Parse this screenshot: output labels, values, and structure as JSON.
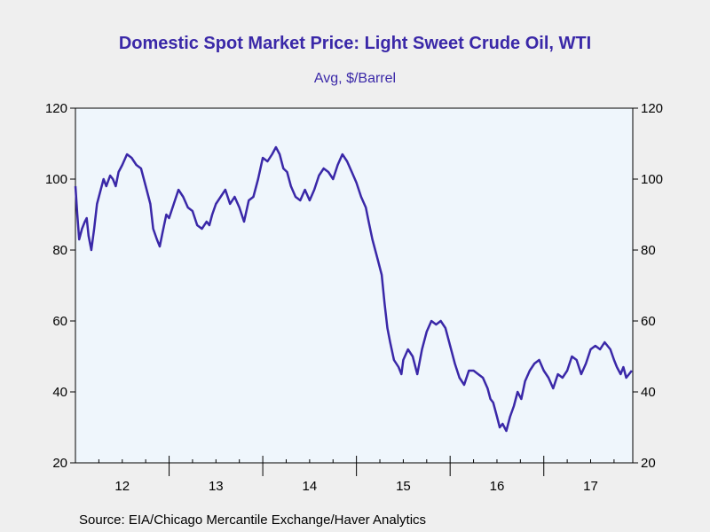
{
  "chart_data": {
    "type": "line",
    "title": "Domestic Spot Market Price: Light Sweet Crude Oil, WTI",
    "subtitle": "Avg, $/Barrel",
    "source": "Source:  EIA/Chicago Mercantile Exchange/Haver Analytics",
    "line_color": "#3a28a8",
    "background_color": "#eff6fc",
    "grid": false,
    "ylim": [
      20,
      120
    ],
    "yticks": [
      20,
      40,
      60,
      80,
      100,
      120
    ],
    "xlim": [
      2011.5,
      2017.45
    ],
    "xticks": [
      {
        "label": "12",
        "year": 2012
      },
      {
        "label": "13",
        "year": 2013
      },
      {
        "label": "14",
        "year": 2014
      },
      {
        "label": "15",
        "year": 2015
      },
      {
        "label": "16",
        "year": 2016
      },
      {
        "label": "17",
        "year": 2017
      }
    ],
    "series": [
      {
        "points": [
          [
            2011.5,
            98
          ],
          [
            2011.52,
            90
          ],
          [
            2011.54,
            83
          ],
          [
            2011.57,
            86
          ],
          [
            2011.6,
            88
          ],
          [
            2011.62,
            89
          ],
          [
            2011.64,
            84
          ],
          [
            2011.67,
            80
          ],
          [
            2011.7,
            86
          ],
          [
            2011.73,
            93
          ],
          [
            2011.77,
            97
          ],
          [
            2011.8,
            100
          ],
          [
            2011.83,
            98
          ],
          [
            2011.87,
            101
          ],
          [
            2011.9,
            100
          ],
          [
            2011.93,
            98
          ],
          [
            2011.96,
            102
          ],
          [
            2012.0,
            104
          ],
          [
            2012.05,
            107
          ],
          [
            2012.1,
            106
          ],
          [
            2012.15,
            104
          ],
          [
            2012.2,
            103
          ],
          [
            2012.25,
            98
          ],
          [
            2012.3,
            93
          ],
          [
            2012.33,
            86
          ],
          [
            2012.37,
            83
          ],
          [
            2012.4,
            81
          ],
          [
            2012.43,
            85
          ],
          [
            2012.47,
            90
          ],
          [
            2012.5,
            89
          ],
          [
            2012.55,
            93
          ],
          [
            2012.6,
            97
          ],
          [
            2012.65,
            95
          ],
          [
            2012.7,
            92
          ],
          [
            2012.75,
            91
          ],
          [
            2012.8,
            87
          ],
          [
            2012.85,
            86
          ],
          [
            2012.9,
            88
          ],
          [
            2012.93,
            87
          ],
          [
            2012.96,
            90
          ],
          [
            2013.0,
            93
          ],
          [
            2013.05,
            95
          ],
          [
            2013.1,
            97
          ],
          [
            2013.15,
            93
          ],
          [
            2013.2,
            95
          ],
          [
            2013.25,
            92
          ],
          [
            2013.3,
            88
          ],
          [
            2013.35,
            94
          ],
          [
            2013.4,
            95
          ],
          [
            2013.45,
            100
          ],
          [
            2013.5,
            106
          ],
          [
            2013.55,
            105
          ],
          [
            2013.6,
            107
          ],
          [
            2013.64,
            109
          ],
          [
            2013.68,
            107
          ],
          [
            2013.72,
            103
          ],
          [
            2013.76,
            102
          ],
          [
            2013.8,
            98
          ],
          [
            2013.85,
            95
          ],
          [
            2013.9,
            94
          ],
          [
            2013.95,
            97
          ],
          [
            2014.0,
            94
          ],
          [
            2014.05,
            97
          ],
          [
            2014.1,
            101
          ],
          [
            2014.15,
            103
          ],
          [
            2014.2,
            102
          ],
          [
            2014.25,
            100
          ],
          [
            2014.3,
            104
          ],
          [
            2014.35,
            107
          ],
          [
            2014.4,
            105
          ],
          [
            2014.45,
            102
          ],
          [
            2014.5,
            99
          ],
          [
            2014.55,
            95
          ],
          [
            2014.6,
            92
          ],
          [
            2014.63,
            88
          ],
          [
            2014.67,
            83
          ],
          [
            2014.72,
            78
          ],
          [
            2014.77,
            73
          ],
          [
            2014.8,
            65
          ],
          [
            2014.83,
            58
          ],
          [
            2014.86,
            54
          ],
          [
            2014.9,
            49
          ],
          [
            2014.95,
            47
          ],
          [
            2014.98,
            45
          ],
          [
            2015.0,
            49
          ],
          [
            2015.05,
            52
          ],
          [
            2015.1,
            50
          ],
          [
            2015.15,
            45
          ],
          [
            2015.2,
            52
          ],
          [
            2015.25,
            57
          ],
          [
            2015.3,
            60
          ],
          [
            2015.35,
            59
          ],
          [
            2015.4,
            60
          ],
          [
            2015.45,
            58
          ],
          [
            2015.5,
            53
          ],
          [
            2015.55,
            48
          ],
          [
            2015.6,
            44
          ],
          [
            2015.65,
            42
          ],
          [
            2015.7,
            46
          ],
          [
            2015.75,
            46
          ],
          [
            2015.8,
            45
          ],
          [
            2015.85,
            44
          ],
          [
            2015.9,
            41
          ],
          [
            2015.93,
            38
          ],
          [
            2015.96,
            37
          ],
          [
            2016.0,
            33
          ],
          [
            2016.03,
            30
          ],
          [
            2016.06,
            31
          ],
          [
            2016.1,
            29
          ],
          [
            2016.14,
            33
          ],
          [
            2016.18,
            36
          ],
          [
            2016.22,
            40
          ],
          [
            2016.26,
            38
          ],
          [
            2016.3,
            43
          ],
          [
            2016.35,
            46
          ],
          [
            2016.4,
            48
          ],
          [
            2016.45,
            49
          ],
          [
            2016.5,
            46
          ],
          [
            2016.55,
            44
          ],
          [
            2016.6,
            41
          ],
          [
            2016.65,
            45
          ],
          [
            2016.7,
            44
          ],
          [
            2016.75,
            46
          ],
          [
            2016.8,
            50
          ],
          [
            2016.85,
            49
          ],
          [
            2016.9,
            45
          ],
          [
            2016.95,
            48
          ],
          [
            2017.0,
            52
          ],
          [
            2017.05,
            53
          ],
          [
            2017.1,
            52
          ],
          [
            2017.15,
            54
          ],
          [
            2017.18,
            53
          ],
          [
            2017.21,
            52
          ],
          [
            2017.25,
            49
          ],
          [
            2017.28,
            47
          ],
          [
            2017.32,
            45
          ],
          [
            2017.35,
            47
          ],
          [
            2017.38,
            44
          ],
          [
            2017.41,
            45
          ],
          [
            2017.44,
            46
          ]
        ]
      }
    ]
  }
}
